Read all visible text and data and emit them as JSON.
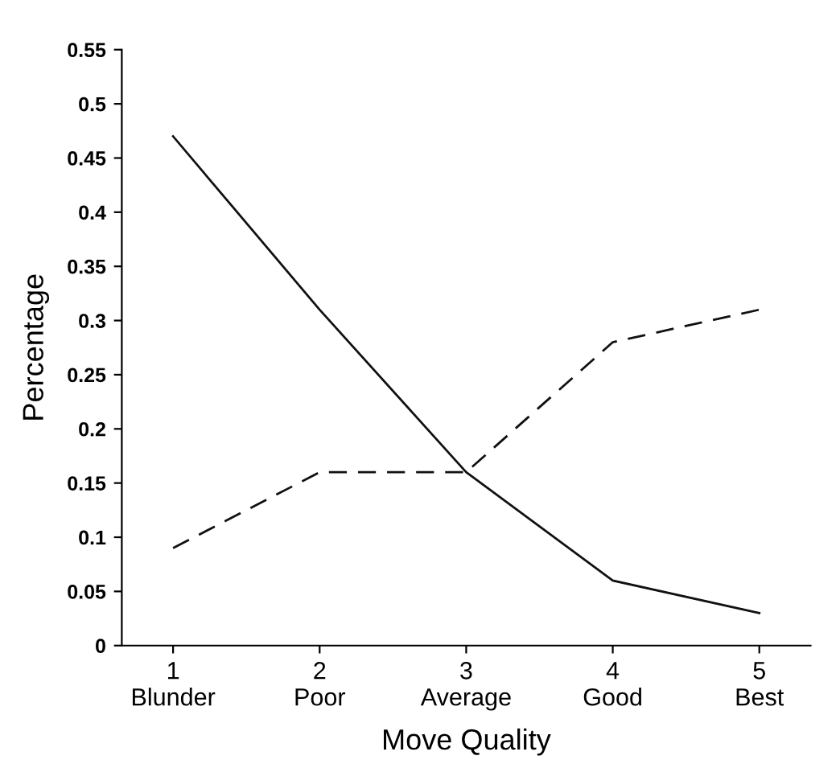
{
  "chart_data": {
    "type": "line",
    "xlabel": "Move Quality",
    "ylabel": "Percentage",
    "x": [
      1,
      2,
      3,
      4,
      5
    ],
    "series": [
      {
        "color": "#111111",
        "values": [
          0.47,
          0.31,
          0.16,
          0.06,
          0.03
        ],
        "line_style": "solid"
      },
      {
        "color": "#111111",
        "values": [
          0.09,
          0.16,
          0.16,
          0.28,
          0.31
        ],
        "line_style": "dashed"
      }
    ],
    "xlim": [
      0.65,
      5.35
    ],
    "ylim": [
      0,
      0.55
    ],
    "xticks": [
      {
        "value": 1,
        "label": "1\nBlunder"
      },
      {
        "value": 2,
        "label": "2\nPoor"
      },
      {
        "value": 3,
        "label": "3\nAverage"
      },
      {
        "value": 4,
        "label": "4\nGood"
      },
      {
        "value": 5,
        "label": "5\nBest"
      }
    ],
    "yticks": [
      0,
      0.05,
      0.1,
      0.15,
      0.2,
      0.25,
      0.3,
      0.35,
      0.4,
      0.45,
      0.5,
      0.55
    ],
    "grid": false
  }
}
